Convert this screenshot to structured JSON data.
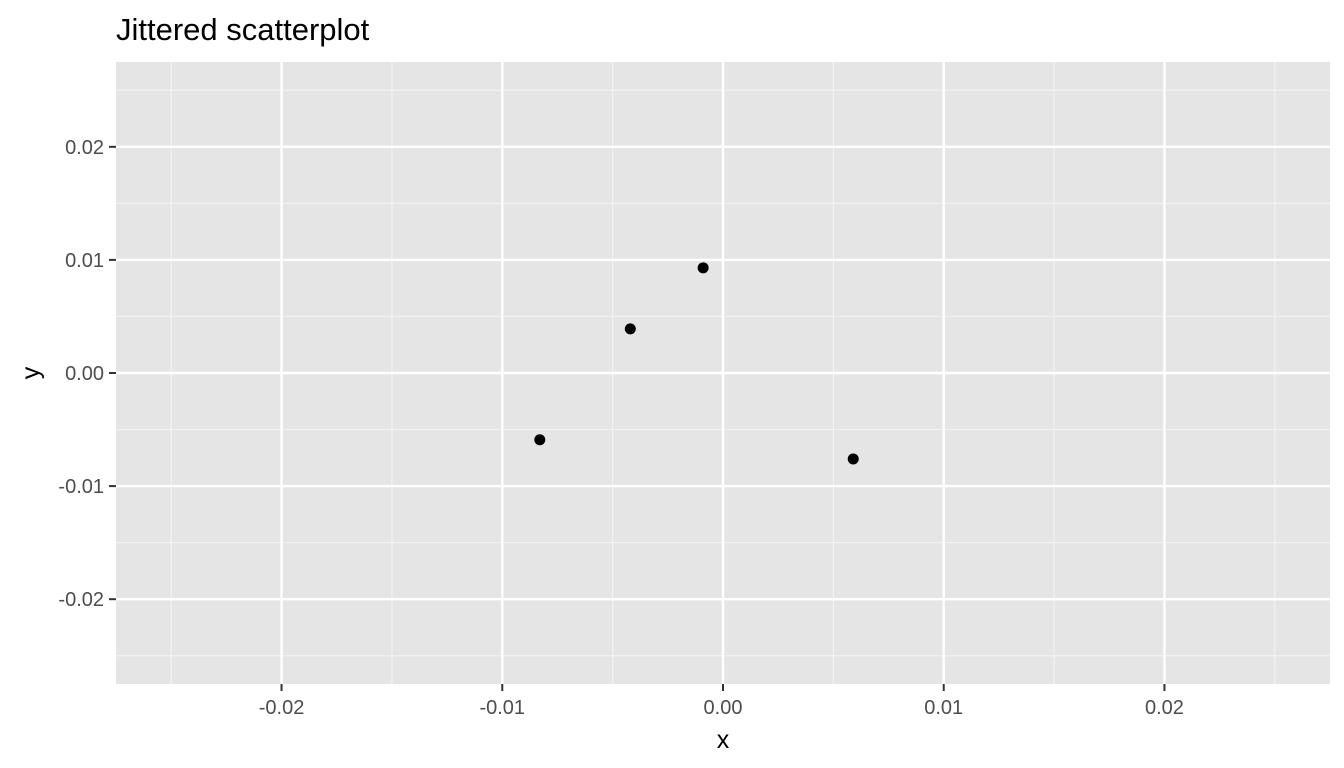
{
  "chart_data": {
    "type": "scatter",
    "title": "Jittered scatterplot",
    "xlabel": "x",
    "ylabel": "y",
    "xlim": [
      -0.0275,
      0.0275
    ],
    "ylim": [
      -0.0275,
      0.0275
    ],
    "x_ticks": [
      -0.02,
      -0.01,
      0.0,
      0.01,
      0.02
    ],
    "x_tick_labels": [
      "-0.02",
      "-0.01",
      "0.00",
      "0.01",
      "0.02"
    ],
    "y_ticks": [
      -0.02,
      -0.01,
      0.0,
      0.01,
      0.02
    ],
    "y_tick_labels": [
      "-0.02",
      "-0.01",
      "0.00",
      "0.01",
      "0.02"
    ],
    "x_minor": [
      -0.025,
      -0.015,
      -0.005,
      0.005,
      0.015,
      0.025
    ],
    "y_minor": [
      -0.025,
      -0.015,
      -0.005,
      0.005,
      0.015,
      0.025
    ],
    "grid": true,
    "legend": "none",
    "points": [
      {
        "x": -0.0083,
        "y": -0.0059
      },
      {
        "x": -0.0042,
        "y": 0.0039
      },
      {
        "x": -0.0009,
        "y": 0.0093
      },
      {
        "x": 0.0059,
        "y": -0.0076
      }
    ],
    "colors": {
      "panel": "#e5e5e5",
      "grid_major": "#ffffff",
      "grid_minor": "#f2f2f2",
      "point": "#000000",
      "tick": "#333333"
    }
  }
}
